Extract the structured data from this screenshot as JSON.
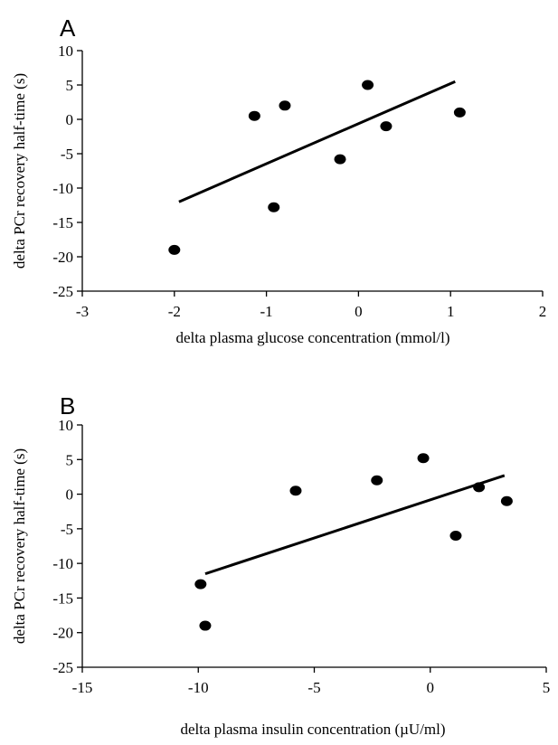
{
  "chart_data": [
    {
      "type": "scatter",
      "panel_label": "A",
      "xlabel": "delta plasma glucose concentration (mmol/l)",
      "ylabel": "delta PCr recovery half-time (s)",
      "xlim": [
        -3,
        2
      ],
      "ylim": [
        -25,
        10
      ],
      "x_ticks": [
        "-3",
        "-2",
        "-1",
        "0",
        "1",
        "2"
      ],
      "y_ticks": [
        "10",
        "5",
        "0",
        "-5",
        "-10",
        "-15",
        "-20",
        "-25"
      ],
      "grid": false,
      "points": [
        {
          "x": -2.0,
          "y": -19.0
        },
        {
          "x": -1.13,
          "y": 0.5
        },
        {
          "x": -0.92,
          "y": -12.8
        },
        {
          "x": -0.8,
          "y": 2.0
        },
        {
          "x": -0.2,
          "y": -5.8
        },
        {
          "x": 0.1,
          "y": 5.0
        },
        {
          "x": 0.3,
          "y": -1.0
        },
        {
          "x": 1.1,
          "y": 1.0
        }
      ],
      "trendline": {
        "x": [
          -1.95,
          1.05
        ],
        "y": [
          -12.0,
          5.5
        ]
      }
    },
    {
      "type": "scatter",
      "panel_label": "B",
      "xlabel": "delta plasma insulin concentration (µU/ml)",
      "ylabel": "delta PCr recovery half-time (s)",
      "xlim": [
        -15,
        5
      ],
      "ylim": [
        -25,
        10
      ],
      "x_ticks": [
        "-15",
        "-10",
        "-5",
        "0",
        "5"
      ],
      "y_ticks": [
        "10",
        "5",
        "0",
        "-5",
        "-10",
        "-15",
        "-20",
        "-25"
      ],
      "grid": false,
      "points": [
        {
          "x": -9.9,
          "y": -13.0
        },
        {
          "x": -9.7,
          "y": -19.0
        },
        {
          "x": -5.8,
          "y": 0.5
        },
        {
          "x": -2.3,
          "y": 2.0
        },
        {
          "x": -0.3,
          "y": 5.2
        },
        {
          "x": 1.1,
          "y": -6.0
        },
        {
          "x": 2.1,
          "y": 1.0
        },
        {
          "x": 3.3,
          "y": -1.0
        }
      ],
      "trendline": {
        "x": [
          -9.7,
          3.2
        ],
        "y": [
          -11.5,
          2.7
        ]
      }
    }
  ]
}
